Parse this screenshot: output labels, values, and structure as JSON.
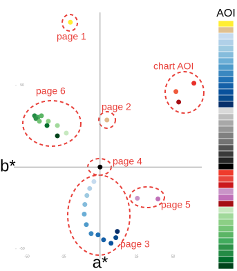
{
  "chart_data": {
    "type": "scatter",
    "xlabel": "a*",
    "ylabel": "b*",
    "xlim": [
      -59,
      71
    ],
    "ylim": [
      -56,
      98
    ],
    "xticks": [
      -50,
      -25,
      25,
      50
    ],
    "yticks": [
      -50,
      50
    ],
    "points": {
      "x": [
        -20.3,
        51.9,
        64.2,
        53.8,
        4.7,
        -44.8,
        -42.5,
        -43.9,
        -40.1,
        -41.5,
        -35.4,
        -36.3,
        -29.2,
        -23.1,
        -29.2,
        0,
        25.5,
        39.6,
        -4.2,
        -7.1,
        -9.0,
        -10.4,
        -10.8,
        -9.4,
        -6.1,
        -1.4,
        2.4,
        7.5,
        10.8,
        11.8
      ],
      "y": [
        88.6,
        46.2,
        51.3,
        39.8,
        28.8,
        31.4,
        30.5,
        29.7,
        31.4,
        28.0,
        28.0,
        25.4,
        25.4,
        20.8,
        19.1,
        0,
        -19.1,
        -19.5,
        -8.9,
        -13.1,
        -17.4,
        -22.9,
        -28.8,
        -35.2,
        -40.7,
        -41.5,
        -44.5,
        -46.6,
        -43.2,
        -39.4
      ],
      "colors": [
        "#ffee33",
        "#ef5a3c",
        "#e8302a",
        "#a50f15",
        "#e0b888",
        "#238b45",
        "#41ab5d",
        "#2e9249",
        "#5bb565",
        "#74c476",
        "#8ccf85",
        "#006d2c",
        "#a1d99b",
        "#c7e9c0",
        "#00441b",
        "#000000",
        "#c994c7",
        "#c070b8",
        "#c6dbef",
        "#b0d0e8",
        "#9ecae1",
        "#85bcdc",
        "#6baed6",
        "#4f9bcb",
        "#3a87c0",
        "#2171b5",
        "#1560a8",
        "#08519c",
        "#084a8c",
        "#08306b"
      ]
    },
    "annotations": [
      "page 1",
      "chart AOI",
      "page 2",
      "page 6",
      "page 4",
      "page 5",
      "page 3"
    ],
    "legend": {
      "title": "AOI",
      "colors": [
        "#ffee33",
        "#e0c090",
        "#c6dbef",
        "#b0d0e8",
        "#9ecae1",
        "#85bcdc",
        "#6baed6",
        "#4f9bcb",
        "#3a87c0",
        "#2171b5",
        "#1560a8",
        "#08519c",
        "#084a8c",
        "#08306b",
        "#d9d9d9",
        "#bdbdbd",
        "#a8a8a8",
        "#969696",
        "#808080",
        "#737373",
        "#525252",
        "#3a3a3a",
        "#252525",
        "#000000",
        "#ef3b2c",
        "#e8453c",
        "#cb181d",
        "#c994c7",
        "#c070b8",
        "#a50f15",
        "#c7e9c0",
        "#a1d99b",
        "#8ccf85",
        "#74c476",
        "#5bb565",
        "#41ab5d",
        "#2e9249",
        "#238b45",
        "#006d2c",
        "#00441b"
      ]
    }
  }
}
